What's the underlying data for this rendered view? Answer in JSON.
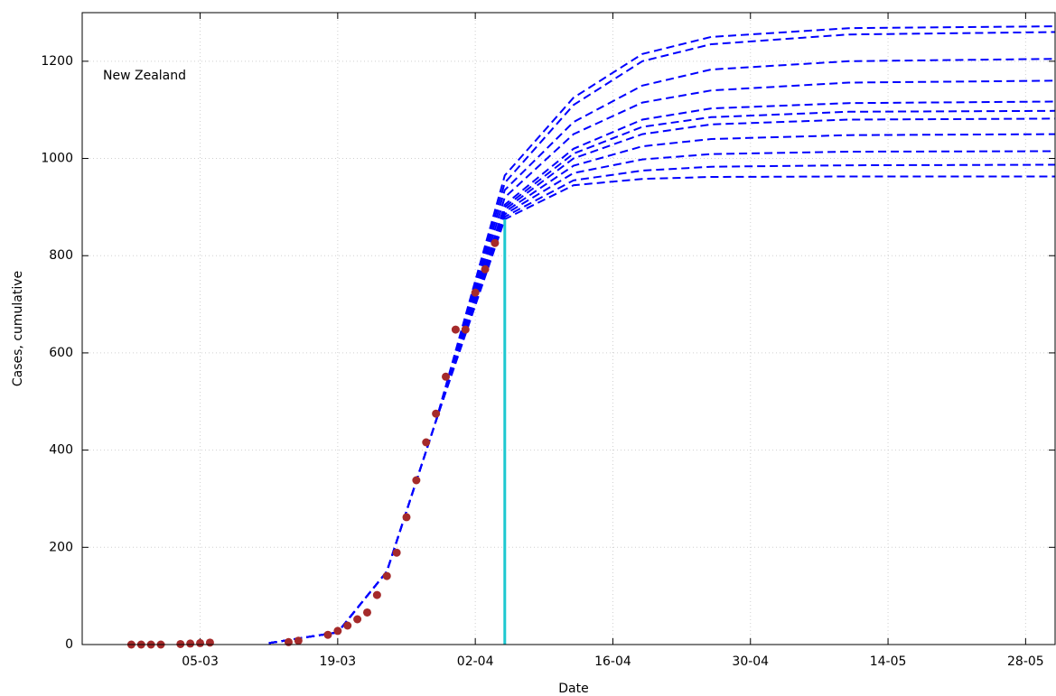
{
  "chart_data": {
    "type": "line",
    "annotation": "New Zealand",
    "xlabel": "Date",
    "ylabel": "Cases, cumulative",
    "xlim": [
      "22-02",
      "31-05"
    ],
    "xticks": [
      "05-03",
      "19-03",
      "02-04",
      "16-04",
      "30-04",
      "14-05",
      "28-05"
    ],
    "ylim": [
      0,
      1300
    ],
    "yticks": [
      0,
      200,
      400,
      600,
      800,
      1000,
      1200
    ],
    "grid": true,
    "marker_x": "05-04",
    "marker_color": "#1ec8d0",
    "x": [
      "12-03",
      "19-03",
      "24-03",
      "29-03",
      "05-04",
      "12-04",
      "19-04",
      "26-04",
      "10-05",
      "31-05"
    ],
    "series": [
      {
        "style": "dashed",
        "color": "#0000ff",
        "values": [
          3,
          25,
          150,
          460,
          875,
          945,
          958,
          962,
          963,
          963
        ]
      },
      {
        "style": "dashed",
        "color": "#0000ff",
        "values": [
          3,
          25,
          150,
          460,
          880,
          955,
          975,
          983,
          986,
          987
        ]
      },
      {
        "style": "dashed",
        "color": "#0000ff",
        "values": [
          3,
          25,
          150,
          460,
          885,
          970,
          998,
          1009,
          1014,
          1015
        ]
      },
      {
        "style": "dashed",
        "color": "#0000ff",
        "values": [
          3,
          25,
          150,
          460,
          890,
          985,
          1025,
          1040,
          1048,
          1050
        ]
      },
      {
        "style": "dashed",
        "color": "#0000ff",
        "values": [
          3,
          25,
          150,
          460,
          895,
          1000,
          1050,
          1070,
          1080,
          1082
        ]
      },
      {
        "style": "dashed",
        "color": "#0000ff",
        "values": [
          3,
          25,
          150,
          460,
          900,
          1010,
          1065,
          1085,
          1096,
          1098
        ]
      },
      {
        "style": "dashed",
        "color": "#0000ff",
        "values": [
          3,
          25,
          150,
          460,
          905,
          1020,
          1080,
          1103,
          1114,
          1117
        ]
      },
      {
        "style": "dashed",
        "color": "#0000ff",
        "values": [
          3,
          25,
          150,
          460,
          920,
          1050,
          1115,
          1140,
          1156,
          1160
        ]
      },
      {
        "style": "dashed",
        "color": "#0000ff",
        "values": [
          3,
          25,
          150,
          460,
          935,
          1075,
          1150,
          1183,
          1200,
          1205
        ]
      },
      {
        "style": "dashed",
        "color": "#0000ff",
        "values": [
          3,
          25,
          150,
          460,
          950,
          1110,
          1200,
          1235,
          1255,
          1260
        ]
      },
      {
        "style": "dashed",
        "color": "#0000ff",
        "values": [
          3,
          25,
          150,
          460,
          965,
          1125,
          1215,
          1250,
          1268,
          1272
        ]
      },
      {
        "style": "points",
        "color": "#a52a2a",
        "x": [
          "27-02",
          "28-02",
          "29-02",
          "01-03",
          "03-03",
          "04-03",
          "05-03",
          "06-03",
          "14-03",
          "15-03",
          "18-03",
          "19-03",
          "20-03",
          "21-03",
          "22-03",
          "23-03",
          "24-03",
          "25-03",
          "26-03",
          "27-03",
          "28-03",
          "29-03",
          "30-03",
          "31-03",
          "01-04",
          "02-04",
          "03-04",
          "04-04"
        ],
        "values": [
          0,
          0,
          0,
          0,
          1,
          2,
          3,
          4,
          5,
          8,
          20,
          28,
          39,
          52,
          66,
          102,
          141,
          189,
          262,
          338,
          416,
          475,
          551,
          648,
          648,
          724,
          772,
          826
        ]
      }
    ]
  }
}
